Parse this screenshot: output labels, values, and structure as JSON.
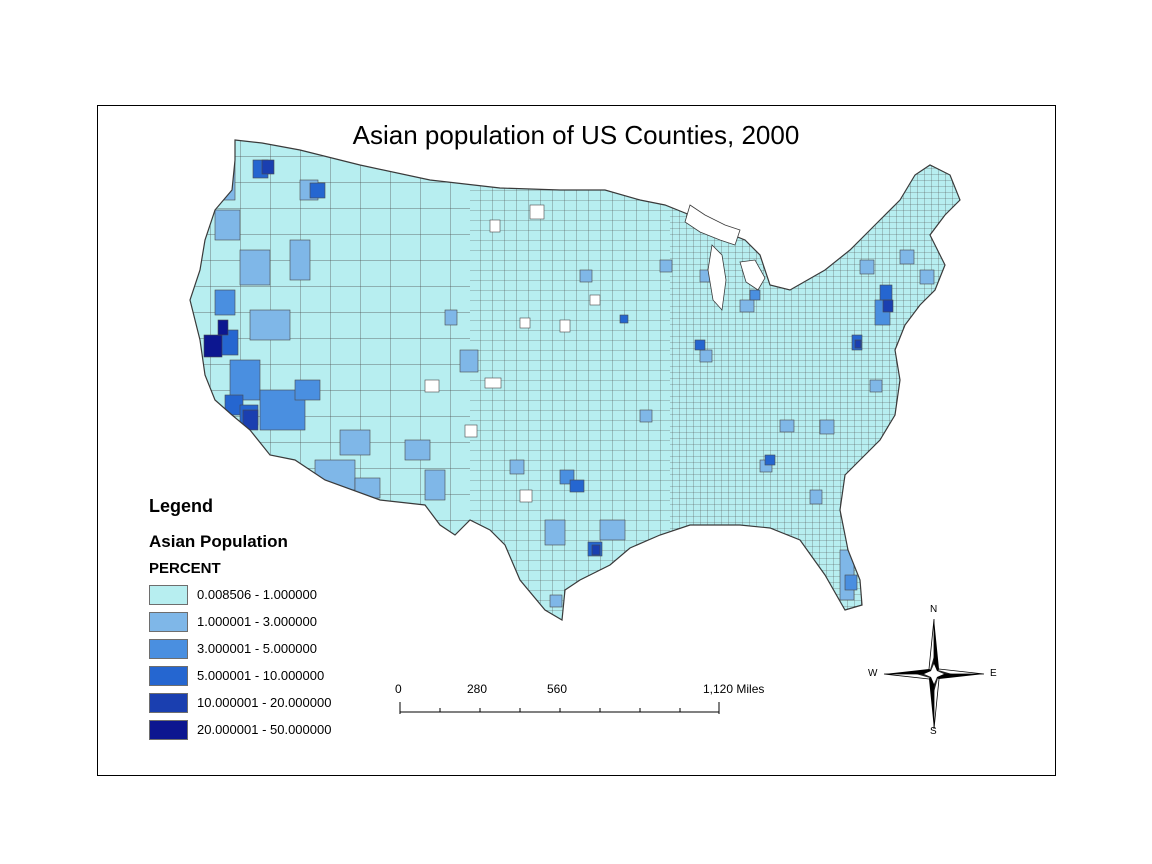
{
  "title": "Asian population of US Counties, 2000",
  "legend": {
    "heading": "Legend",
    "layer_name": "Asian Population",
    "field_name": "PERCENT",
    "classes": [
      {
        "label": "0.008506 - 1.000000",
        "color": "#b7eef0"
      },
      {
        "label": "1.000001 - 3.000000",
        "color": "#7fb7e8"
      },
      {
        "label": "3.000001 - 5.000000",
        "color": "#4a8fe0"
      },
      {
        "label": "5.000001 - 10.000000",
        "color": "#2566d0"
      },
      {
        "label": "10.000001 - 20.000000",
        "color": "#1a3fb0"
      },
      {
        "label": "20.000001 - 50.000000",
        "color": "#0c1690"
      }
    ]
  },
  "scale_bar": {
    "labels": [
      "0",
      "280",
      "560",
      "1,120 Miles"
    ]
  },
  "north_arrow": {
    "n": "N",
    "s": "S",
    "e": "E",
    "w": "W"
  },
  "colors": {
    "county_border": "#4a4a4a",
    "missing": "#ffffff",
    "frame": "#000000"
  }
}
